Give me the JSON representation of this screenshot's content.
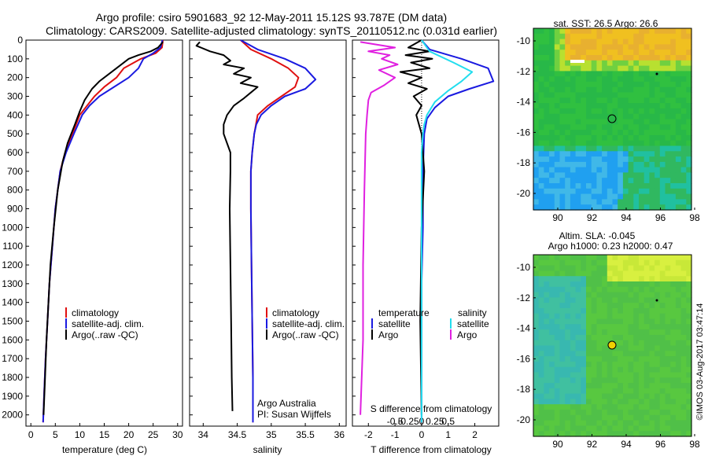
{
  "header": {
    "title_line1": "Argo profile: csiro 5901683_92 12-May-2011 15.12S 93.787E (DM data)",
    "title_line2": "Climatology: CARS2009. Satellite-adjusted climatology: synTS_20110512.nc (0.031d earlier)"
  },
  "side_text": "©IMOS 03-Aug-2017 03:47:14",
  "colors": {
    "climatology": "#e01010",
    "satellite": "#1a1ae0",
    "argo": "#000000",
    "sat_salinity": "#22ddee",
    "argo_salinity": "#e020e0"
  },
  "chart_data": [
    {
      "type": "line",
      "id": "temperature",
      "xlabel": "temperature (deg C)",
      "ylabel": "",
      "xlim": [
        -1,
        31
      ],
      "ylim": [
        2060,
        0
      ],
      "xticks": [
        0,
        5,
        10,
        15,
        20,
        25,
        30
      ],
      "yticks": [
        0,
        100,
        200,
        300,
        400,
        500,
        600,
        700,
        800,
        900,
        1000,
        1100,
        1200,
        1300,
        1400,
        1500,
        1600,
        1700,
        1800,
        1900,
        2000
      ],
      "legend": [
        "climatology",
        "satellite-adj. clim.",
        "Argo(..raw -QC)"
      ],
      "series": [
        {
          "name": "climatology",
          "color_key": "climatology",
          "points": [
            [
              27,
              0
            ],
            [
              26.8,
              40
            ],
            [
              25.5,
              70
            ],
            [
              22.5,
              100
            ],
            [
              19,
              150
            ],
            [
              17.5,
              200
            ],
            [
              15,
              250
            ],
            [
              13,
              300
            ],
            [
              11.5,
              350
            ],
            [
              10,
              400
            ],
            [
              8.5,
              500
            ],
            [
              7,
              600
            ],
            [
              6,
              700
            ],
            [
              5,
              900
            ],
            [
              4.4,
              1100
            ],
            [
              3.8,
              1300
            ],
            [
              3.4,
              1500
            ],
            [
              3,
              1700
            ],
            [
              2.7,
              1900
            ],
            [
              2.5,
              2040
            ]
          ]
        },
        {
          "name": "satellite-adj. clim.",
          "color_key": "satellite",
          "points": [
            [
              26.9,
              0
            ],
            [
              26.5,
              40
            ],
            [
              25,
              70
            ],
            [
              23,
              100
            ],
            [
              22,
              150
            ],
            [
              20,
              200
            ],
            [
              17,
              250
            ],
            [
              14,
              300
            ],
            [
              12,
              350
            ],
            [
              10.5,
              400
            ],
            [
              8.8,
              500
            ],
            [
              7.2,
              600
            ],
            [
              6,
              700
            ],
            [
              5,
              900
            ],
            [
              4.4,
              1100
            ],
            [
              3.8,
              1300
            ],
            [
              3.4,
              1500
            ],
            [
              3,
              1700
            ],
            [
              2.7,
              1900
            ],
            [
              2.5,
              2040
            ]
          ]
        },
        {
          "name": "Argo(..raw -QC)",
          "color_key": "argo",
          "points": [
            [
              27,
              10
            ],
            [
              26,
              40
            ],
            [
              24.5,
              60
            ],
            [
              22,
              80
            ],
            [
              20,
              100
            ],
            [
              17.5,
              150
            ],
            [
              16,
              180
            ],
            [
              14,
              220
            ],
            [
              12.5,
              260
            ],
            [
              11,
              320
            ],
            [
              10,
              380
            ],
            [
              9,
              450
            ],
            [
              7.5,
              550
            ],
            [
              6.5,
              650
            ],
            [
              5.5,
              800
            ],
            [
              4.7,
              1000
            ],
            [
              4,
              1200
            ],
            [
              3.6,
              1400
            ],
            [
              3.2,
              1600
            ],
            [
              2.9,
              1800
            ],
            [
              2.6,
              2000
            ]
          ]
        }
      ]
    },
    {
      "type": "line",
      "id": "salinity",
      "xlabel": "salinity",
      "xlim": [
        33.8,
        36.1
      ],
      "ylim": [
        2060,
        0
      ],
      "xticks": [
        34,
        34.5,
        35,
        35.5,
        36
      ],
      "legend": [
        "climatology",
        "satellite-adj. clim.",
        "Argo(..raw -QC)"
      ],
      "annotation": [
        "Argo Australia",
        "PI: Susan Wijffels"
      ],
      "series": [
        {
          "name": "climatology",
          "color_key": "climatology",
          "points": [
            [
              34.55,
              0
            ],
            [
              34.7,
              50
            ],
            [
              35.0,
              100
            ],
            [
              35.25,
              150
            ],
            [
              35.4,
              200
            ],
            [
              35.35,
              250
            ],
            [
              35.15,
              300
            ],
            [
              34.95,
              350
            ],
            [
              34.8,
              400
            ],
            [
              34.75,
              500
            ],
            [
              34.72,
              600
            ],
            [
              34.7,
              700
            ],
            [
              34.7,
              900
            ],
            [
              34.71,
              1200
            ],
            [
              34.72,
              1500
            ],
            [
              34.73,
              1800
            ],
            [
              34.73,
              2040
            ]
          ]
        },
        {
          "name": "satellite-adj. clim.",
          "color_key": "satellite",
          "points": [
            [
              34.55,
              0
            ],
            [
              34.8,
              50
            ],
            [
              35.2,
              100
            ],
            [
              35.5,
              150
            ],
            [
              35.65,
              210
            ],
            [
              35.5,
              260
            ],
            [
              35.2,
              300
            ],
            [
              35.0,
              350
            ],
            [
              34.85,
              400
            ],
            [
              34.78,
              450
            ],
            [
              34.75,
              500
            ],
            [
              34.72,
              600
            ],
            [
              34.7,
              700
            ],
            [
              34.7,
              900
            ],
            [
              34.71,
              1200
            ],
            [
              34.72,
              1500
            ],
            [
              34.73,
              1800
            ],
            [
              34.73,
              2040
            ]
          ]
        },
        {
          "name": "Argo(..raw -QC)",
          "color_key": "argo",
          "points": [
            [
              33.95,
              10
            ],
            [
              33.9,
              30
            ],
            [
              34.1,
              60
            ],
            [
              34.3,
              80
            ],
            [
              34.4,
              110
            ],
            [
              34.3,
              130
            ],
            [
              34.6,
              150
            ],
            [
              34.45,
              180
            ],
            [
              34.7,
              200
            ],
            [
              34.55,
              230
            ],
            [
              34.8,
              250
            ],
            [
              34.7,
              280
            ],
            [
              34.6,
              310
            ],
            [
              34.45,
              350
            ],
            [
              34.35,
              400
            ],
            [
              34.3,
              450
            ],
            [
              34.3,
              500
            ],
            [
              34.35,
              550
            ],
            [
              34.4,
              600
            ],
            [
              34.4,
              650
            ],
            [
              34.4,
              700
            ],
            [
              34.39,
              900
            ],
            [
              34.4,
              1200
            ],
            [
              34.41,
              1500
            ],
            [
              34.42,
              1800
            ],
            [
              34.43,
              1980
            ]
          ]
        }
      ]
    },
    {
      "type": "line",
      "id": "difference",
      "xlabel": "T difference from climatology",
      "xlabel_top": "S difference from climatology",
      "xlim": [
        -2.6,
        2.9
      ],
      "ylim": [
        2060,
        0
      ],
      "xticks_T": [
        -2,
        -1,
        0,
        1,
        2
      ],
      "xticks_S": [
        -0.5,
        -0.25,
        0,
        0.25,
        0.5
      ],
      "legend_T_title": "temperature",
      "legend_S_title": "salinity",
      "legend_T": [
        "satellite",
        "Argo"
      ],
      "legend_S": [
        "satellite",
        "Argo"
      ],
      "series": [
        {
          "name": "temperature satellite",
          "color_key": "satellite",
          "points": [
            [
              0,
              0
            ],
            [
              0.3,
              50
            ],
            [
              1.5,
              100
            ],
            [
              2.5,
              150
            ],
            [
              2.7,
              220
            ],
            [
              1.8,
              260
            ],
            [
              1,
              300
            ],
            [
              0.5,
              360
            ],
            [
              0.2,
              420
            ],
            [
              0.1,
              500
            ],
            [
              0.05,
              700
            ],
            [
              0.05,
              1000
            ],
            [
              0,
              1300
            ],
            [
              0,
              1600
            ],
            [
              0,
              2040
            ]
          ]
        },
        {
          "name": "temperature Argo",
          "color_key": "argo",
          "points": [
            [
              0,
              0
            ],
            [
              -0.5,
              40
            ],
            [
              0.3,
              60
            ],
            [
              -0.6,
              80
            ],
            [
              0.4,
              100
            ],
            [
              -0.4,
              120
            ],
            [
              0.3,
              150
            ],
            [
              -0.8,
              170
            ],
            [
              0,
              200
            ],
            [
              -0.5,
              230
            ],
            [
              0.2,
              260
            ],
            [
              -0.3,
              300
            ],
            [
              0,
              350
            ],
            [
              -0.2,
              400
            ],
            [
              0,
              500
            ],
            [
              0.1,
              700
            ],
            [
              0,
              1000
            ],
            [
              -0.05,
              1500
            ],
            [
              0,
              2000
            ]
          ]
        },
        {
          "name": "salinity satellite",
          "color_key": "sat_salinity",
          "points": [
            [
              0,
              0
            ],
            [
              0.3,
              60
            ],
            [
              1.2,
              120
            ],
            [
              1.9,
              170
            ],
            [
              1.5,
              220
            ],
            [
              1.0,
              270
            ],
            [
              0.5,
              330
            ],
            [
              0.2,
              400
            ],
            [
              0.1,
              450
            ],
            [
              0.05,
              500
            ],
            [
              0,
              600
            ],
            [
              0,
              800
            ],
            [
              0,
              1100
            ],
            [
              0,
              1500
            ],
            [
              0,
              2040
            ]
          ]
        },
        {
          "name": "salinity Argo",
          "color_key": "argo_salinity",
          "points": [
            [
              -2.3,
              10
            ],
            [
              -1.0,
              40
            ],
            [
              -2.0,
              60
            ],
            [
              -1.2,
              80
            ],
            [
              -1.5,
              100
            ],
            [
              -0.9,
              130
            ],
            [
              -1.6,
              160
            ],
            [
              -1.0,
              200
            ],
            [
              -1.4,
              240
            ],
            [
              -1.9,
              280
            ],
            [
              -2.0,
              320
            ],
            [
              -2.05,
              400
            ],
            [
              -2.1,
              500
            ],
            [
              -2.15,
              800
            ],
            [
              -2.2,
              1200
            ],
            [
              -2.2,
              1600
            ],
            [
              -2.3,
              2000
            ]
          ]
        }
      ]
    }
  ],
  "maps": {
    "sst": {
      "title": "sat. SST: 26.5 Argo: 26.6",
      "xticks": [
        "90",
        "92",
        "94",
        "96",
        "98"
      ],
      "yticks": [
        "-10",
        "-12",
        "-14",
        "-16",
        "-18",
        "-20"
      ]
    },
    "sla": {
      "title_line1": "Altim. SLA: -0.045",
      "title_line2": "Argo h1000: 0.23 h2000: 0.47",
      "xticks": [
        "90",
        "92",
        "94",
        "96",
        "98"
      ],
      "yticks": [
        "-10",
        "-12",
        "-14",
        "-16",
        "-18",
        "-20"
      ]
    }
  }
}
